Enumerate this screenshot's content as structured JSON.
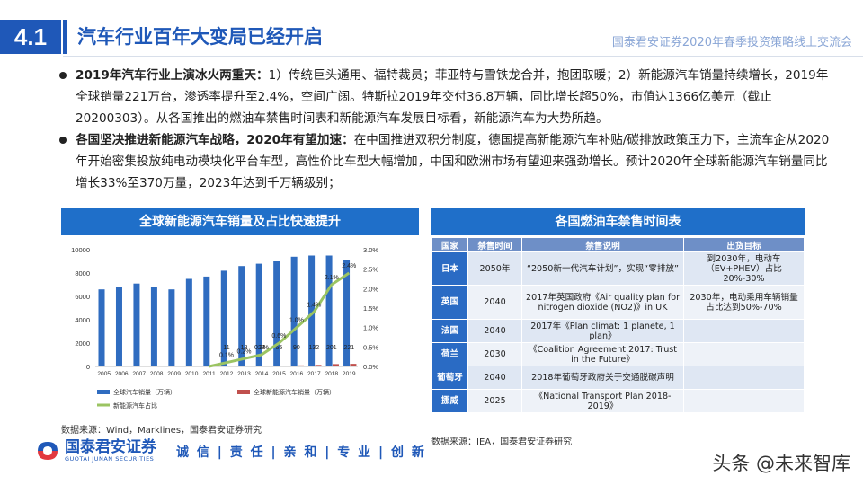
{
  "header": {
    "section_number": "4.1",
    "title": "汽车行业百年大变局已经开启",
    "conference": "国泰君安证券2020年春季投资策略线上交流会"
  },
  "bullets": [
    {
      "lead": "2019年汽车行业上演冰火两重天：",
      "text": "1）传统巨头通用、福特裁员；菲亚特与雪铁龙合并，抱团取暖；2）新能源汽车销量持续增长，2019年全球销量221万台，渗透率提升至2.4%，空间广阔。特斯拉2019年交付36.8万辆，同比增长超50%，市值达1366亿美元（截止20200303）。从各国推出的燃油车禁售时间表和新能源汽车发展目标看，新能源汽车为大势所趋。"
    },
    {
      "lead": "各国坚决推进新能源汽车战略，2020年有望加速：",
      "text": "在中国推进双积分制度，德国提高新能源汽车补贴/碳排放政策压力下，主流车企从2020年开始密集投放纯电动模块化平台车型，高性价比车型大幅增加，中国和欧洲市场有望迎来强劲增长。预计2020年全球新能源汽车销量同比增长33%至370万量，2023年达到千万辆级别；"
    }
  ],
  "chart_panel": {
    "title": "全球新能源汽车销量及占比快速提升",
    "source": "数据来源：Wind，Marklines，国泰君安证券研究"
  },
  "chart_data": {
    "type": "bar",
    "categories": [
      "2005",
      "2006",
      "2007",
      "2008",
      "2009",
      "2010",
      "2011",
      "2012",
      "2013",
      "2014",
      "2015",
      "2016",
      "2017",
      "2018",
      "2019"
    ],
    "series": [
      {
        "name": "全球汽车销量（万辆）",
        "axis": "left",
        "type": "bar",
        "values": [
          6600,
          6800,
          7100,
          6800,
          6600,
          7500,
          7700,
          8200,
          8600,
          8800,
          9000,
          9400,
          9500,
          9500,
          9100
        ]
      },
      {
        "name": "全球新能源汽车销量（万辆）",
        "axis": "left",
        "type": "bar",
        "values": [
          0,
          0,
          0,
          0,
          0,
          0,
          2,
          11,
          18,
          28,
          55,
          90,
          132,
          201,
          221
        ],
        "labels": [
          "",
          "",
          "",
          "",
          "",
          "",
          "",
          "11",
          "18",
          "28",
          "55",
          "90",
          "132",
          "201",
          "221"
        ]
      },
      {
        "name": "新能源汽车占比",
        "axis": "right",
        "type": "line",
        "values": [
          0,
          0,
          0,
          0,
          0,
          0,
          0.0,
          0.1,
          0.2,
          0.3,
          0.6,
          1.0,
          1.4,
          2.1,
          2.4
        ],
        "labels": [
          "",
          "",
          "",
          "",
          "",
          "",
          "",
          "0.1%",
          "0.2%",
          "0.3%",
          "0.6%",
          "1.0%",
          "1.4%",
          "2.1%",
          "2.4%"
        ]
      }
    ],
    "ylim_left": [
      0,
      10000
    ],
    "yticks_left": [
      "0",
      "2000",
      "4000",
      "6000",
      "8000",
      "10000"
    ],
    "ylim_right": [
      0,
      3.0
    ],
    "yticks_right": [
      "0.0%",
      "0.5%",
      "1.0%",
      "1.5%",
      "2.0%",
      "2.5%",
      "3.0%"
    ],
    "colors": {
      "car_sales": "#2f6cc0",
      "ev_sales": "#c0504d",
      "ev_share": "#9bc462"
    },
    "legend_position": "bottom"
  },
  "ban_table": {
    "title": "各国燃油车禁售时间表",
    "columns": [
      "国家",
      "禁售时间",
      "禁售说明",
      "出货目标"
    ],
    "rows": [
      {
        "country": "日本",
        "time": "2050年",
        "desc": "“2050新一代汽车计划”，实现“零排放”",
        "target": "到2030年，电动车（EV+PHEV）占比20%-30%"
      },
      {
        "country": "英国",
        "time": "2040",
        "desc": "2017年英国政府《Air quality plan for nitrogen dioxide (NO2)》in UK",
        "target": "2030年，电动乘用车辆销量占比达到50%-70%"
      },
      {
        "country": "法国",
        "time": "2040",
        "desc": "2017年《Plan climat: 1 planete, 1 plan》",
        "target": ""
      },
      {
        "country": "荷兰",
        "time": "2030",
        "desc": "《Coalition Agreement 2017: Trust in the Future》",
        "target": ""
      },
      {
        "country": "葡萄牙",
        "time": "2040",
        "desc": "2018年葡萄牙政府关于交通脱碳声明",
        "target": ""
      },
      {
        "country": "挪威",
        "time": "2025",
        "desc": "《National Transport Plan 2018-2019》",
        "target": ""
      }
    ],
    "source": "数据来源：IEA，国泰君安证券研究"
  },
  "footer": {
    "logo_cn": "国泰君安证券",
    "logo_en": "GUOTAI JUNAN SECURITIES",
    "slogan": "诚 信 | 责 任 | 亲 和 | 专 业 | 创 新",
    "watermark": "头条 @未来智库"
  }
}
